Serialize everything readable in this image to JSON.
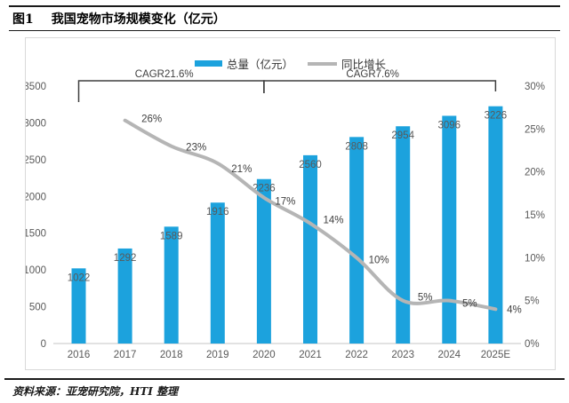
{
  "figure": {
    "label": "图1",
    "title": "我国宠物市场规模变化（亿元）"
  },
  "source": "资料来源：亚宠研究院，HTI 整理",
  "colors": {
    "bar": "#1CA2DD",
    "line": "#B5B5B5",
    "axis_line": "#d9d9d9",
    "bracket": "#3f3f3f"
  },
  "chart_data": {
    "type": "bar",
    "categories": [
      "2016",
      "2017",
      "2018",
      "2019",
      "2020",
      "2021",
      "2022",
      "2023",
      "2024",
      "2025E"
    ],
    "series": [
      {
        "name": "总量（亿元）",
        "kind": "bar",
        "axis": "left",
        "values": [
          1022,
          1292,
          1589,
          1916,
          2236,
          2560,
          2808,
          2954,
          3096,
          3226
        ]
      },
      {
        "name": "同比增长",
        "kind": "line",
        "axis": "right",
        "unit": "%",
        "values": [
          null,
          26,
          23,
          21,
          17,
          14,
          10,
          5,
          5,
          4
        ],
        "labels": [
          "",
          "26%",
          "23%",
          "21%",
          "17%",
          "14%",
          "10%",
          "5%",
          "5%",
          "4%"
        ]
      }
    ],
    "left_axis": {
      "min": 0,
      "max": 3500,
      "step": 500,
      "ticks": [
        "0",
        "500",
        "1000",
        "1500",
        "2000",
        "2500",
        "3000",
        "3500"
      ]
    },
    "right_axis": {
      "min": 0,
      "max": 30,
      "step": 5,
      "ticks": [
        "0%",
        "5%",
        "10%",
        "15%",
        "20%",
        "25%",
        "30%"
      ]
    },
    "annotations": [
      {
        "label": "CAGR21.6%",
        "from": "2016",
        "to": "2020"
      },
      {
        "label": "CAGR7.6%",
        "from": "2020",
        "to": "2025E"
      }
    ],
    "legend_position": "top",
    "grid": false
  }
}
